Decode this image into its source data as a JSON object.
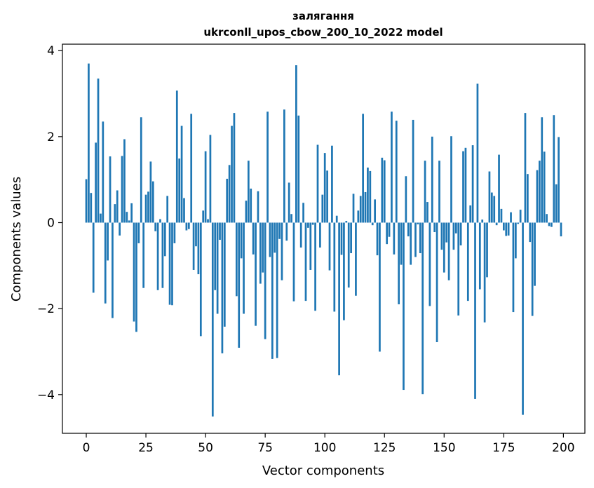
{
  "chart_data": {
    "type": "bar",
    "title_lines": [
      "залягання",
      "ukrconll_upos_cbow_200_10_2022 model"
    ],
    "xlabel": "Vector components",
    "ylabel": "Components values",
    "xlim": [
      -10,
      209
    ],
    "ylim": [
      -4.9,
      4.15
    ],
    "xticks": [
      0,
      25,
      50,
      75,
      100,
      125,
      150,
      175,
      200
    ],
    "xtick_labels": [
      "0",
      "25",
      "50",
      "75",
      "100",
      "125",
      "150",
      "175",
      "200"
    ],
    "yticks": [
      -4,
      -2,
      0,
      2,
      4
    ],
    "ytick_labels": [
      "−4",
      "−2",
      "0",
      "2",
      "4"
    ],
    "bar_color": "#1f77b4",
    "grid": false,
    "values": [
      1.01,
      3.7,
      0.69,
      -1.63,
      1.86,
      3.35,
      0.21,
      2.35,
      -1.88,
      -0.88,
      1.54,
      -2.22,
      0.43,
      0.75,
      -0.3,
      1.55,
      1.94,
      0.25,
      0.05,
      0.45,
      -2.3,
      -2.54,
      -0.48,
      2.45,
      -1.52,
      0.65,
      0.72,
      1.42,
      0.96,
      -0.2,
      -1.57,
      0.08,
      -1.52,
      -0.78,
      0.62,
      -1.91,
      -1.92,
      -0.48,
      3.07,
      1.49,
      2.25,
      0.57,
      -0.18,
      -0.15,
      2.53,
      -1.1,
      -0.55,
      -1.2,
      -2.64,
      0.28,
      1.66,
      0.08,
      2.04,
      -4.51,
      -1.57,
      -2.12,
      -0.4,
      -3.04,
      -2.42,
      1.02,
      1.34,
      2.25,
      2.55,
      -1.71,
      -2.91,
      -0.83,
      -2.12,
      0.51,
      1.44,
      0.79,
      -0.74,
      -2.4,
      0.73,
      -1.42,
      -1.16,
      -2.71,
      2.58,
      -0.8,
      -3.17,
      -0.7,
      -3.15,
      -0.38,
      -1.34,
      2.63,
      -0.42,
      0.93,
      0.2,
      -1.83,
      3.66,
      2.49,
      -0.58,
      0.46,
      -1.82,
      -0.12,
      -1.1,
      -0.05,
      -2.05,
      1.81,
      -0.58,
      0.65,
      1.62,
      1.21,
      -1.11,
      1.79,
      -2.07,
      0.16,
      -3.55,
      -0.75,
      -2.27,
      0.04,
      -1.51,
      -0.71,
      0.67,
      -1.7,
      0.28,
      0.62,
      2.53,
      0.71,
      1.28,
      1.2,
      -0.06,
      0.54,
      -0.76,
      -3.0,
      1.51,
      1.45,
      -0.5,
      -0.33,
      2.58,
      -0.74,
      2.37,
      -1.9,
      -0.98,
      -3.89,
      1.08,
      -0.32,
      -0.98,
      2.39,
      -0.8,
      -0.04,
      -0.71,
      -3.99,
      1.44,
      0.48,
      -1.94,
      2.0,
      -0.22,
      -2.78,
      1.44,
      -0.63,
      -1.16,
      -0.46,
      -1.34,
      2.01,
      -0.63,
      -0.25,
      -2.16,
      -0.53,
      1.66,
      1.74,
      -1.82,
      0.4,
      1.8,
      -4.1,
      3.23,
      -1.55,
      0.07,
      -2.32,
      -1.27,
      1.19,
      0.7,
      0.62,
      -0.06,
      1.58,
      0.32,
      -0.18,
      -0.31,
      -0.3,
      0.24,
      -2.08,
      -0.83,
      -0.03,
      0.3,
      -4.47,
      2.55,
      1.13,
      -0.45,
      -2.17,
      -1.47,
      1.22,
      1.44,
      2.45,
      1.65,
      0.2,
      -0.08,
      -0.1,
      2.5,
      0.89,
      1.99,
      -0.32
    ]
  }
}
